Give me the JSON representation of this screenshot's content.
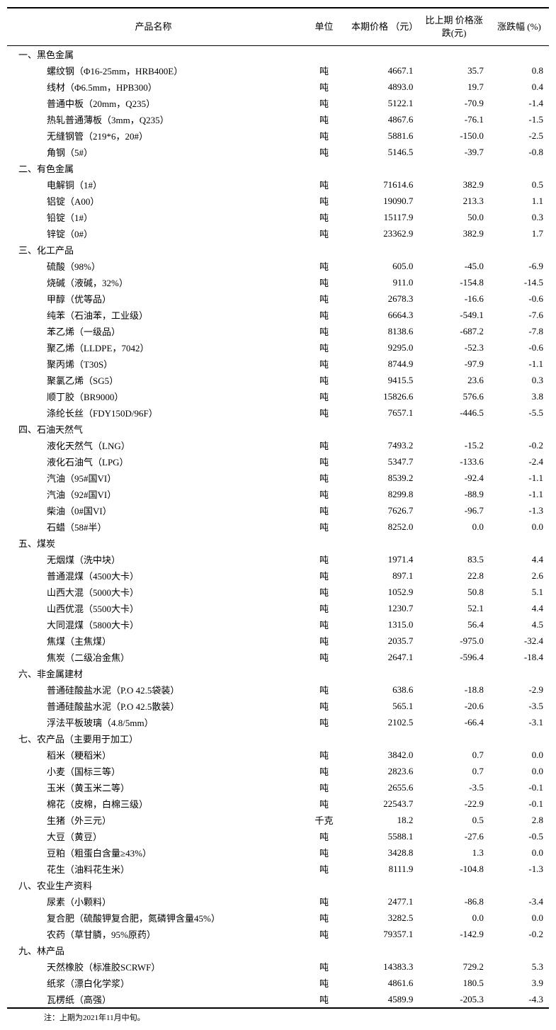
{
  "headers": {
    "name": "产品名称",
    "unit": "单位",
    "price": "本期价格\n（元）",
    "change": "比上期\n价格涨跌(元)",
    "pct": "涨跌幅 (%)"
  },
  "sections": [
    {
      "title": "一、黑色金属",
      "rows": [
        {
          "name": "螺纹钢（Φ16-25mm，HRB400E）",
          "unit": "吨",
          "price": "4667.1",
          "change": "35.7",
          "pct": "0.8"
        },
        {
          "name": "线材（Φ6.5mm，HPB300）",
          "unit": "吨",
          "price": "4893.0",
          "change": "19.7",
          "pct": "0.4"
        },
        {
          "name": "普通中板（20mm，Q235）",
          "unit": "吨",
          "price": "5122.1",
          "change": "-70.9",
          "pct": "-1.4"
        },
        {
          "name": "热轧普通薄板（3mm，Q235）",
          "unit": "吨",
          "price": "4867.6",
          "change": "-76.1",
          "pct": "-1.5"
        },
        {
          "name": "无缝钢管（219*6，20#）",
          "unit": "吨",
          "price": "5881.6",
          "change": "-150.0",
          "pct": "-2.5"
        },
        {
          "name": "角钢（5#）",
          "unit": "吨",
          "price": "5146.5",
          "change": "-39.7",
          "pct": "-0.8"
        }
      ]
    },
    {
      "title": "二、有色金属",
      "rows": [
        {
          "name": "电解铜（1#）",
          "unit": "吨",
          "price": "71614.6",
          "change": "382.9",
          "pct": "0.5"
        },
        {
          "name": "铝锭（A00）",
          "unit": "吨",
          "price": "19090.7",
          "change": "213.3",
          "pct": "1.1"
        },
        {
          "name": "铅锭（1#）",
          "unit": "吨",
          "price": "15117.9",
          "change": "50.0",
          "pct": "0.3"
        },
        {
          "name": "锌锭（0#）",
          "unit": "吨",
          "price": "23362.9",
          "change": "382.9",
          "pct": "1.7"
        }
      ]
    },
    {
      "title": "三、化工产品",
      "rows": [
        {
          "name": "硫酸（98%）",
          "unit": "吨",
          "price": "605.0",
          "change": "-45.0",
          "pct": "-6.9"
        },
        {
          "name": "烧碱（液碱，32%）",
          "unit": "吨",
          "price": "911.0",
          "change": "-154.8",
          "pct": "-14.5"
        },
        {
          "name": "甲醇（优等品）",
          "unit": "吨",
          "price": "2678.3",
          "change": "-16.6",
          "pct": "-0.6"
        },
        {
          "name": "纯苯（石油苯，工业级）",
          "unit": "吨",
          "price": "6664.3",
          "change": "-549.1",
          "pct": "-7.6"
        },
        {
          "name": "苯乙烯（一级品）",
          "unit": "吨",
          "price": "8138.6",
          "change": "-687.2",
          "pct": "-7.8"
        },
        {
          "name": "聚乙烯（LLDPE，7042）",
          "unit": "吨",
          "price": "9295.0",
          "change": "-52.3",
          "pct": "-0.6"
        },
        {
          "name": "聚丙烯（T30S）",
          "unit": "吨",
          "price": "8744.9",
          "change": "-97.9",
          "pct": "-1.1"
        },
        {
          "name": "聚氯乙烯（SG5）",
          "unit": "吨",
          "price": "9415.5",
          "change": "23.6",
          "pct": "0.3"
        },
        {
          "name": "顺丁胶（BR9000）",
          "unit": "吨",
          "price": "15826.6",
          "change": "576.6",
          "pct": "3.8"
        },
        {
          "name": "涤纶长丝（FDY150D/96F）",
          "unit": "吨",
          "price": "7657.1",
          "change": "-446.5",
          "pct": "-5.5"
        }
      ]
    },
    {
      "title": "四、石油天然气",
      "rows": [
        {
          "name": "液化天然气（LNG）",
          "unit": "吨",
          "price": "7493.2",
          "change": "-15.2",
          "pct": "-0.2"
        },
        {
          "name": "液化石油气（LPG）",
          "unit": "吨",
          "price": "5347.7",
          "change": "-133.6",
          "pct": "-2.4"
        },
        {
          "name": "汽油（95#国VI）",
          "unit": "吨",
          "price": "8539.2",
          "change": "-92.4",
          "pct": "-1.1"
        },
        {
          "name": "汽油（92#国VI）",
          "unit": "吨",
          "price": "8299.8",
          "change": "-88.9",
          "pct": "-1.1"
        },
        {
          "name": "柴油（0#国VI）",
          "unit": "吨",
          "price": "7626.7",
          "change": "-96.7",
          "pct": "-1.3"
        },
        {
          "name": "石蜡（58#半）",
          "unit": "吨",
          "price": "8252.0",
          "change": "0.0",
          "pct": "0.0"
        }
      ]
    },
    {
      "title": "五、煤炭",
      "rows": [
        {
          "name": "无烟煤（洗中块）",
          "unit": "吨",
          "price": "1971.4",
          "change": "83.5",
          "pct": "4.4"
        },
        {
          "name": "普通混煤（4500大卡）",
          "unit": "吨",
          "price": "897.1",
          "change": "22.8",
          "pct": "2.6"
        },
        {
          "name": "山西大混（5000大卡）",
          "unit": "吨",
          "price": "1052.9",
          "change": "50.8",
          "pct": "5.1"
        },
        {
          "name": "山西优混（5500大卡）",
          "unit": "吨",
          "price": "1230.7",
          "change": "52.1",
          "pct": "4.4"
        },
        {
          "name": "大同混煤（5800大卡）",
          "unit": "吨",
          "price": "1315.0",
          "change": "56.4",
          "pct": "4.5"
        },
        {
          "name": "焦煤（主焦煤）",
          "unit": "吨",
          "price": "2035.7",
          "change": "-975.0",
          "pct": "-32.4"
        },
        {
          "name": "焦炭（二级冶金焦）",
          "unit": "吨",
          "price": "2647.1",
          "change": "-596.4",
          "pct": "-18.4"
        }
      ]
    },
    {
      "title": "六、非金属建材",
      "rows": [
        {
          "name": "普通硅酸盐水泥（P.O 42.5袋装）",
          "unit": "吨",
          "price": "638.6",
          "change": "-18.8",
          "pct": "-2.9"
        },
        {
          "name": "普通硅酸盐水泥（P.O 42.5散装）",
          "unit": "吨",
          "price": "565.1",
          "change": "-20.6",
          "pct": "-3.5"
        },
        {
          "name": "浮法平板玻璃（4.8/5mm）",
          "unit": "吨",
          "price": "2102.5",
          "change": "-66.4",
          "pct": "-3.1"
        }
      ]
    },
    {
      "title": "七、农产品（主要用于加工）",
      "rows": [
        {
          "name": "稻米（粳稻米）",
          "unit": "吨",
          "price": "3842.0",
          "change": "0.7",
          "pct": "0.0"
        },
        {
          "name": "小麦（国标三等）",
          "unit": "吨",
          "price": "2823.6",
          "change": "0.7",
          "pct": "0.0"
        },
        {
          "name": "玉米（黄玉米二等）",
          "unit": "吨",
          "price": "2655.6",
          "change": "-3.5",
          "pct": "-0.1"
        },
        {
          "name": "棉花（皮棉，白棉三级）",
          "unit": "吨",
          "price": "22543.7",
          "change": "-22.9",
          "pct": "-0.1"
        },
        {
          "name": "生猪（外三元）",
          "unit": "千克",
          "price": "18.2",
          "change": "0.5",
          "pct": "2.8"
        },
        {
          "name": "大豆（黄豆）",
          "unit": "吨",
          "price": "5588.1",
          "change": "-27.6",
          "pct": "-0.5"
        },
        {
          "name": "豆粕（粗蛋白含量≥43%）",
          "unit": "吨",
          "price": "3428.8",
          "change": "1.3",
          "pct": "0.0"
        },
        {
          "name": "花生（油料花生米）",
          "unit": "吨",
          "price": "8111.9",
          "change": "-104.8",
          "pct": "-1.3"
        }
      ]
    },
    {
      "title": "八、农业生产资料",
      "rows": [
        {
          "name": "尿素（小颗料）",
          "unit": "吨",
          "price": "2477.1",
          "change": "-86.8",
          "pct": "-3.4"
        },
        {
          "name": "复合肥（硫酸钾复合肥，氮磷钾含量45%）",
          "unit": "吨",
          "price": "3282.5",
          "change": "0.0",
          "pct": "0.0"
        },
        {
          "name": "农药（草甘膦，95%原药）",
          "unit": "吨",
          "price": "79357.1",
          "change": "-142.9",
          "pct": "-0.2"
        }
      ]
    },
    {
      "title": "九、林产品",
      "rows": [
        {
          "name": "天然橡胶（标准胶SCRWF）",
          "unit": "吨",
          "price": "14383.3",
          "change": "729.2",
          "pct": "5.3"
        },
        {
          "name": "纸浆（漂白化学浆）",
          "unit": "吨",
          "price": "4861.6",
          "change": "180.5",
          "pct": "3.9"
        },
        {
          "name": "瓦楞纸（高强）",
          "unit": "吨",
          "price": "4589.9",
          "change": "-205.3",
          "pct": "-4.3"
        }
      ]
    }
  ],
  "footnote": "注：上期为2021年11月中旬。"
}
